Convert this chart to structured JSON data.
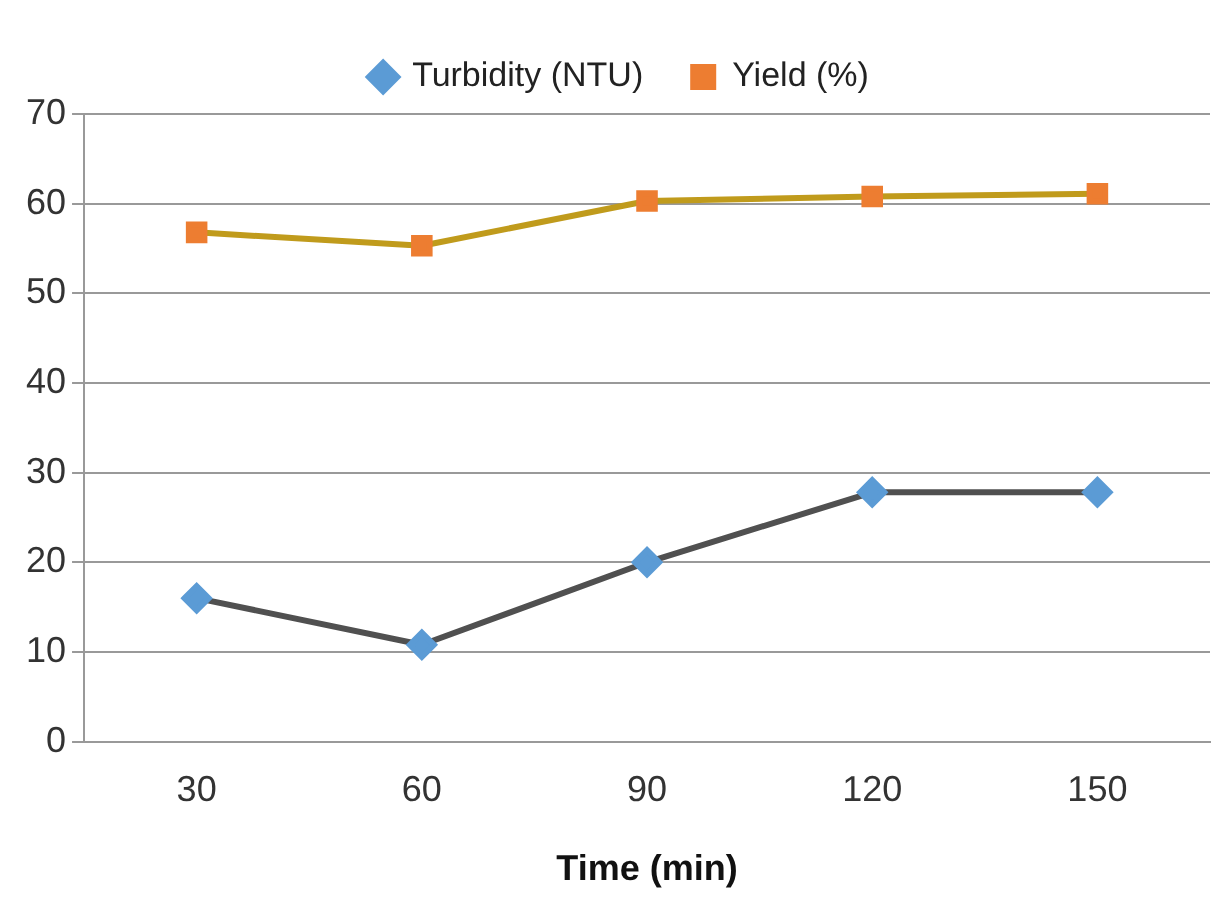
{
  "chart_data": {
    "type": "line",
    "xlabel": "Time (min)",
    "categories": [
      "30",
      "60",
      "90",
      "120",
      "150"
    ],
    "series": [
      {
        "name": "Turbidity (NTU)",
        "color": "#505050",
        "colors": [
          "#5b9bd5",
          "#5b9bd5",
          "#5b9bd5",
          "#5b9bd5",
          "#5b9bd5"
        ],
        "marker": "diamond",
        "values": [
          16,
          10.8,
          20,
          27.8,
          27.8
        ]
      },
      {
        "name": "Yield (%)",
        "color": "#c09b1c",
        "colors": [
          "#ed7d31",
          "#ed7d31",
          "#ed7d31",
          "#ed7d31",
          "#ed7d31"
        ],
        "marker": "square",
        "values": [
          56.8,
          55.3,
          60.3,
          60.8,
          61.1
        ]
      }
    ],
    "ylim": [
      0,
      70
    ],
    "yticks": [
      0,
      10,
      20,
      30,
      40,
      50,
      60,
      70
    ],
    "grid": "y",
    "legend": "top"
  }
}
